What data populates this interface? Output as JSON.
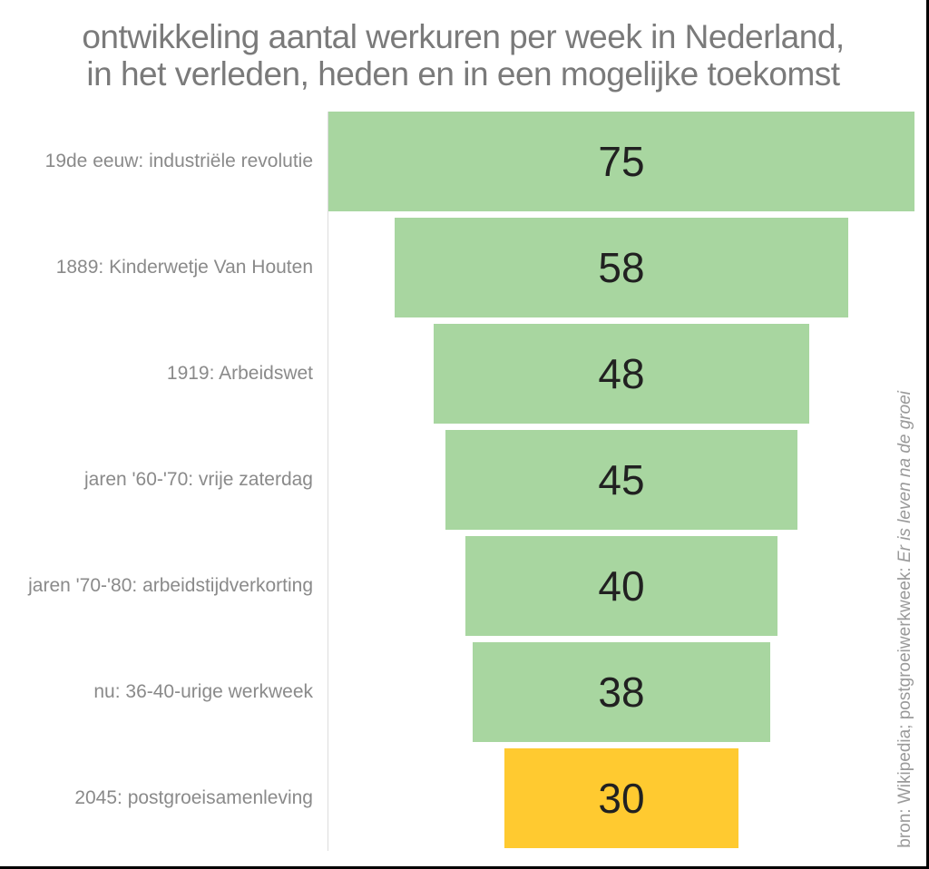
{
  "chart_data": {
    "type": "bar",
    "orientation": "horizontal-centered-funnel",
    "title": "ontwikkeling aantal werkuren per week in Nederland, in het verleden, heden en in een mogelijke toekomst",
    "title_lines": [
      "ontwikkeling aantal werkuren per week in Nederland,",
      "in het verleden, heden en in een mogelijke toekomst"
    ],
    "categories": [
      "19de eeuw: industriële revolutie",
      "1889: Kinderwetje Van Houten",
      "1919: Arbeidswet",
      "jaren '60-'70: vrije zaterdag",
      "jaren '70-'80: arbeidstijdverkorting",
      "nu: 36-40-urige werkweek",
      "2045: postgroeisamenleving"
    ],
    "values": [
      75,
      58,
      48,
      45,
      40,
      38,
      30
    ],
    "colors": [
      "#a8d6a0",
      "#a8d6a0",
      "#a8d6a0",
      "#a8d6a0",
      "#a8d6a0",
      "#a8d6a0",
      "#ffca30"
    ],
    "bar_color_default": "#a8d6a0",
    "bar_color_highlight": "#ffca30",
    "highlight_index": 6,
    "value_axis_max": 75,
    "grid": false,
    "legend": false,
    "source": {
      "prefix": "bron: Wikipedia; postgroeiwerkweek: ",
      "italic": "Er is leven na de groei"
    }
  }
}
